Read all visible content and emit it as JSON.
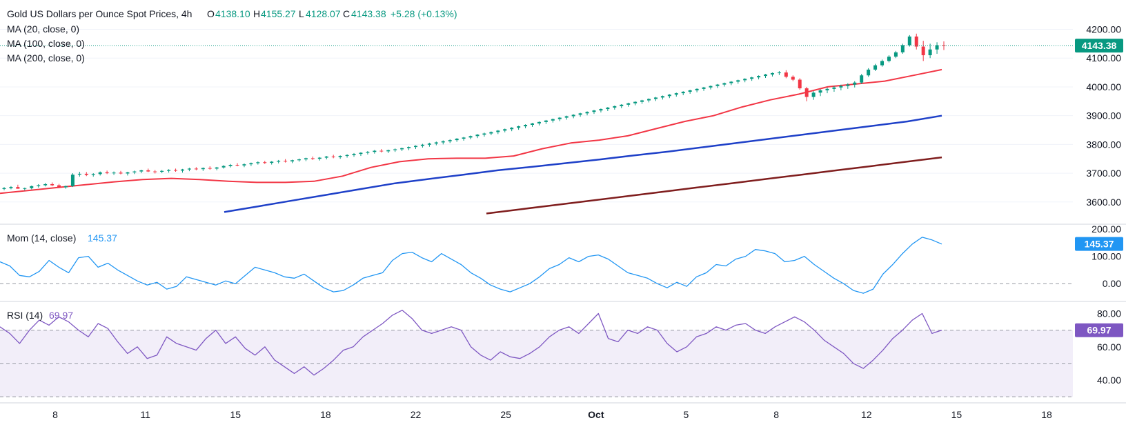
{
  "header": {
    "title": "Gold US Dollars per Ounce Spot Prices, 4h",
    "open_label": "O",
    "open": "4138.10",
    "high_label": "H",
    "high": "4155.27",
    "low_label": "L",
    "low": "4128.07",
    "close_label": "C",
    "close": "4143.38",
    "change": "+5.28 (+0.13%)"
  },
  "indicators": {
    "ma20": "MA (20, close, 0)",
    "ma100": "MA (100, close, 0)",
    "ma200": "MA (200, close, 0)",
    "mom_label": "Mom (14, close)",
    "mom_value": "145.37",
    "rsi_label": "RSI (14)",
    "rsi_value": "69.97"
  },
  "colors": {
    "up": "#089981",
    "down": "#f23645",
    "ma20": "#f23645",
    "ma100": "#1e40c8",
    "ma200": "#7f1d1d",
    "mom": "#2196f3",
    "rsi": "#7e57c2"
  },
  "chart_data": [
    {
      "type": "candlestick",
      "title": "Gold US Dollars per Ounce Spot Prices, 4h",
      "y_ticks": [
        "4200.00",
        "4100.00",
        "4000.00",
        "3900.00",
        "3800.00",
        "3700.00",
        "3600.00"
      ],
      "ylim": [
        3530,
        4230
      ],
      "last_price": "4143.38",
      "x_ticks": [
        "8",
        "11",
        "15",
        "18",
        "22",
        "25",
        "Oct",
        "5",
        "8",
        "12",
        "15",
        "18"
      ],
      "candles_ohlc": [
        [
          3645,
          3652,
          3641,
          3648
        ],
        [
          3648,
          3655,
          3644,
          3652
        ],
        [
          3652,
          3660,
          3648,
          3646
        ],
        [
          3646,
          3650,
          3640,
          3648
        ],
        [
          3648,
          3657,
          3644,
          3655
        ],
        [
          3655,
          3662,
          3650,
          3658
        ],
        [
          3658,
          3666,
          3654,
          3662
        ],
        [
          3662,
          3668,
          3655,
          3658
        ],
        [
          3658,
          3663,
          3648,
          3651
        ],
        [
          3651,
          3657,
          3646,
          3655
        ],
        [
          3655,
          3700,
          3652,
          3695
        ],
        [
          3695,
          3705,
          3688,
          3698
        ],
        [
          3698,
          3704,
          3690,
          3694
        ],
        [
          3694,
          3700,
          3688,
          3697
        ],
        [
          3697,
          3706,
          3692,
          3703
        ],
        [
          3703,
          3709,
          3697,
          3700
        ],
        [
          3700,
          3706,
          3694,
          3702
        ],
        [
          3702,
          3708,
          3696,
          3699
        ],
        [
          3699,
          3705,
          3692,
          3703
        ],
        [
          3703,
          3709,
          3697,
          3706
        ],
        [
          3706,
          3712,
          3700,
          3710
        ],
        [
          3710,
          3716,
          3704,
          3706
        ],
        [
          3706,
          3711,
          3699,
          3705
        ],
        [
          3705,
          3711,
          3700,
          3708
        ],
        [
          3708,
          3714,
          3702,
          3711
        ],
        [
          3711,
          3716,
          3705,
          3709
        ],
        [
          3709,
          3715,
          3702,
          3713
        ],
        [
          3713,
          3719,
          3707,
          3716
        ],
        [
          3716,
          3721,
          3710,
          3714
        ],
        [
          3714,
          3720,
          3708,
          3718
        ],
        [
          3718,
          3724,
          3712,
          3716
        ],
        [
          3716,
          3722,
          3710,
          3720
        ],
        [
          3720,
          3728,
          3716,
          3725
        ],
        [
          3725,
          3732,
          3720,
          3729
        ],
        [
          3729,
          3735,
          3724,
          3727
        ],
        [
          3727,
          3734,
          3721,
          3731
        ],
        [
          3731,
          3737,
          3725,
          3735
        ],
        [
          3735,
          3741,
          3730,
          3738
        ],
        [
          3738,
          3743,
          3732,
          3736
        ],
        [
          3736,
          3742,
          3730,
          3740
        ],
        [
          3740,
          3746,
          3734,
          3743
        ],
        [
          3743,
          3749,
          3737,
          3741
        ],
        [
          3741,
          3747,
          3735,
          3745
        ],
        [
          3745,
          3751,
          3740,
          3748
        ],
        [
          3748,
          3754,
          3742,
          3752
        ],
        [
          3752,
          3758,
          3746,
          3750
        ],
        [
          3750,
          3756,
          3744,
          3754
        ],
        [
          3754,
          3760,
          3748,
          3758
        ],
        [
          3758,
          3764,
          3752,
          3756
        ],
        [
          3756,
          3762,
          3750,
          3760
        ],
        [
          3760,
          3766,
          3754,
          3763
        ],
        [
          3763,
          3770,
          3757,
          3767
        ],
        [
          3767,
          3773,
          3760,
          3771
        ],
        [
          3771,
          3777,
          3765,
          3774
        ],
        [
          3774,
          3781,
          3768,
          3778
        ],
        [
          3778,
          3784,
          3772,
          3776
        ],
        [
          3776,
          3782,
          3770,
          3780
        ],
        [
          3780,
          3786,
          3774,
          3783
        ],
        [
          3783,
          3789,
          3777,
          3787
        ],
        [
          3787,
          3793,
          3780,
          3791
        ],
        [
          3791,
          3797,
          3784,
          3795
        ],
        [
          3795,
          3802,
          3789,
          3799
        ],
        [
          3799,
          3806,
          3792,
          3803
        ],
        [
          3803,
          3810,
          3797,
          3807
        ],
        [
          3807,
          3814,
          3800,
          3811
        ],
        [
          3811,
          3818,
          3805,
          3815
        ],
        [
          3815,
          3822,
          3809,
          3820
        ],
        [
          3820,
          3826,
          3813,
          3824
        ],
        [
          3824,
          3831,
          3818,
          3829
        ],
        [
          3829,
          3836,
          3822,
          3834
        ],
        [
          3834,
          3841,
          3827,
          3838
        ],
        [
          3838,
          3845,
          3832,
          3843
        ],
        [
          3843,
          3850,
          3836,
          3848
        ],
        [
          3848,
          3855,
          3842,
          3853
        ],
        [
          3853,
          3860,
          3846,
          3858
        ],
        [
          3858,
          3865,
          3851,
          3863
        ],
        [
          3863,
          3870,
          3856,
          3868
        ],
        [
          3868,
          3875,
          3861,
          3873
        ],
        [
          3873,
          3880,
          3866,
          3878
        ],
        [
          3878,
          3885,
          3871,
          3883
        ],
        [
          3883,
          3890,
          3876,
          3888
        ],
        [
          3888,
          3895,
          3881,
          3893
        ],
        [
          3893,
          3900,
          3886,
          3898
        ],
        [
          3898,
          3905,
          3891,
          3903
        ],
        [
          3903,
          3910,
          3896,
          3908
        ],
        [
          3908,
          3915,
          3901,
          3913
        ],
        [
          3913,
          3920,
          3906,
          3918
        ],
        [
          3918,
          3925,
          3911,
          3923
        ],
        [
          3923,
          3930,
          3916,
          3928
        ],
        [
          3928,
          3935,
          3921,
          3933
        ],
        [
          3933,
          3940,
          3926,
          3938
        ],
        [
          3938,
          3945,
          3931,
          3943
        ],
        [
          3943,
          3950,
          3936,
          3948
        ],
        [
          3948,
          3955,
          3941,
          3953
        ],
        [
          3953,
          3960,
          3946,
          3958
        ],
        [
          3958,
          3965,
          3951,
          3963
        ],
        [
          3963,
          3970,
          3956,
          3968
        ],
        [
          3968,
          3975,
          3961,
          3973
        ],
        [
          3973,
          3980,
          3966,
          3978
        ],
        [
          3978,
          3985,
          3971,
          3983
        ],
        [
          3983,
          3990,
          3976,
          3988
        ],
        [
          3988,
          3995,
          3981,
          3993
        ],
        [
          3993,
          4000,
          3986,
          3998
        ],
        [
          3998,
          4005,
          3991,
          4003
        ],
        [
          4003,
          4010,
          3996,
          4008
        ],
        [
          4008,
          4015,
          4001,
          4013
        ],
        [
          4013,
          4020,
          4006,
          4018
        ],
        [
          4018,
          4025,
          4011,
          4023
        ],
        [
          4023,
          4030,
          4016,
          4028
        ],
        [
          4028,
          4035,
          4021,
          4033
        ],
        [
          4033,
          4040,
          4026,
          4038
        ],
        [
          4038,
          4045,
          4031,
          4043
        ],
        [
          4043,
          4050,
          4036,
          4048
        ],
        [
          4048,
          4055,
          4041,
          4050
        ],
        [
          4050,
          4058,
          4030,
          4035
        ],
        [
          4035,
          4040,
          4020,
          4025
        ],
        [
          4025,
          4030,
          3990,
          3995
        ],
        [
          3995,
          4000,
          3950,
          3965
        ],
        [
          3965,
          3985,
          3955,
          3980
        ],
        [
          3980,
          3992,
          3968,
          3988
        ],
        [
          3988,
          3998,
          3978,
          3993
        ],
        [
          3993,
          4003,
          3983,
          3998
        ],
        [
          3998,
          4008,
          3988,
          4003
        ],
        [
          4003,
          4013,
          3993,
          4008
        ],
        [
          4008,
          4020,
          3998,
          4015
        ],
        [
          4015,
          4045,
          4010,
          4040
        ],
        [
          4040,
          4065,
          4035,
          4060
        ],
        [
          4060,
          4080,
          4055,
          4075
        ],
        [
          4075,
          4095,
          4070,
          4090
        ],
        [
          4090,
          4110,
          4085,
          4105
        ],
        [
          4105,
          4125,
          4100,
          4120
        ],
        [
          4120,
          4150,
          4115,
          4145
        ],
        [
          4145,
          4180,
          4140,
          4175
        ],
        [
          4175,
          4185,
          4130,
          4140
        ],
        [
          4140,
          4160,
          4090,
          4110
        ],
        [
          4110,
          4150,
          4100,
          4130
        ],
        [
          4130,
          4155,
          4115,
          4145
        ],
        [
          4145,
          4158,
          4128,
          4143
        ]
      ],
      "ma20": [
        3630,
        3640,
        3650,
        3660,
        3670,
        3678,
        3682,
        3678,
        3672,
        3668,
        3668,
        3672,
        3690,
        3720,
        3740,
        3750,
        3752,
        3752,
        3760,
        3785,
        3805,
        3815,
        3830,
        3855,
        3880,
        3900,
        3930,
        3955,
        3975,
        4000,
        4010,
        4020,
        4040,
        4060
      ],
      "ma100": [
        3565,
        3585,
        3605,
        3625,
        3645,
        3665,
        3680,
        3695,
        3710,
        3722,
        3735,
        3748,
        3762,
        3775,
        3790,
        3805,
        3820,
        3835,
        3850,
        3865,
        3880,
        3900
      ],
      "ma200": [
        3560,
        3575,
        3590,
        3605,
        3620,
        3635,
        3650,
        3665,
        3680,
        3695,
        3710,
        3725,
        3740,
        3755
      ]
    },
    {
      "type": "line",
      "title": "Mom (14, close)",
      "y_ticks": [
        "200.00",
        "100.00",
        "0.00"
      ],
      "ylim": [
        -60,
        210
      ],
      "last_value": "145.37",
      "values": [
        80,
        65,
        30,
        25,
        45,
        85,
        60,
        40,
        95,
        100,
        60,
        75,
        50,
        30,
        10,
        -5,
        5,
        -20,
        -10,
        25,
        15,
        5,
        -5,
        10,
        0,
        30,
        60,
        50,
        40,
        25,
        20,
        35,
        10,
        -15,
        -30,
        -25,
        -5,
        20,
        30,
        40,
        85,
        110,
        115,
        95,
        80,
        110,
        90,
        70,
        40,
        20,
        -5,
        -20,
        -30,
        -15,
        0,
        25,
        55,
        70,
        95,
        80,
        100,
        105,
        90,
        65,
        40,
        30,
        20,
        0,
        -15,
        5,
        -10,
        25,
        40,
        70,
        65,
        90,
        100,
        125,
        120,
        110,
        80,
        85,
        100,
        70,
        45,
        20,
        0,
        -25,
        -35,
        -20,
        35,
        70,
        110,
        145,
        170,
        160,
        145
      ]
    },
    {
      "type": "line",
      "title": "RSI (14)",
      "y_ticks": [
        "80.00",
        "60.00",
        "40.00"
      ],
      "ylim": [
        28,
        86
      ],
      "bands": [
        30,
        50,
        70
      ],
      "last_value": "69.97",
      "values": [
        72,
        68,
        62,
        70,
        76,
        73,
        78,
        75,
        70,
        66,
        74,
        71,
        63,
        56,
        60,
        53,
        55,
        66,
        62,
        60,
        58,
        65,
        70,
        62,
        66,
        59,
        55,
        60,
        52,
        48,
        44,
        48,
        43,
        47,
        52,
        58,
        60,
        66,
        70,
        74,
        79,
        82,
        77,
        70,
        68,
        70,
        72,
        70,
        60,
        55,
        52,
        57,
        54,
        53,
        56,
        60,
        66,
        70,
        72,
        68,
        74,
        80,
        65,
        63,
        70,
        68,
        72,
        70,
        62,
        57,
        60,
        66,
        68,
        72,
        70,
        73,
        74,
        70,
        68,
        72,
        75,
        78,
        75,
        70,
        64,
        60,
        56,
        50,
        47,
        52,
        58,
        65,
        70,
        76,
        80,
        68,
        70
      ]
    }
  ]
}
